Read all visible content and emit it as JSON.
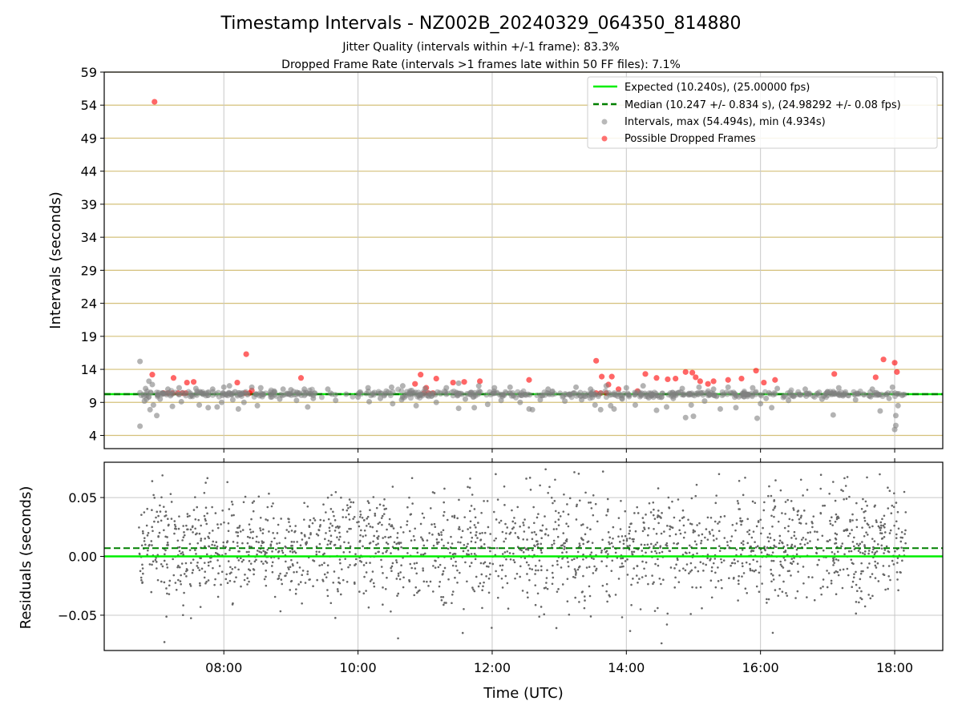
{
  "figure": {
    "title": "Timestamp Intervals - NZ002B_20240329_064350_814880",
    "subtitle_1": "Jitter Quality (intervals within +/-1 frame): 83.3%",
    "subtitle_2": "Dropped Frame Rate (intervals >1 frames late within 50 FF files): 7.1%",
    "xlabel": "Time (UTC)",
    "x_ticks": [
      "08:00",
      "10:00",
      "12:00",
      "14:00",
      "16:00",
      "18:00"
    ],
    "colors": {
      "expected": "#00ee00",
      "median": "#008000",
      "intervals": "#808080",
      "dropped": "#ff0000",
      "hgrid": "#d4c07a",
      "vgrid": "#c8c8c8"
    }
  },
  "chart_data": [
    {
      "type": "scatter",
      "panel": "top",
      "ylabel": "Intervals (seconds)",
      "y_ticks": [
        "4",
        "9",
        "14",
        "19",
        "24",
        "29",
        "34",
        "39",
        "44",
        "49",
        "54",
        "59"
      ],
      "xlim": [
        "06:13",
        "18:43"
      ],
      "ylim": [
        2,
        59
      ],
      "grid": "on",
      "legend_position": "top-right",
      "legend": [
        "Expected (10.240s), (25.00000 fps)",
        "Median (10.247 +/- 0.834 s), (24.98292 +/- 0.08 fps)",
        "Intervals, max (54.494s), min (4.934s)",
        "Possible Dropped Frames"
      ],
      "expected_interval": 10.24,
      "median_interval": 10.247,
      "max_interval": 54.494,
      "min_interval": 4.934,
      "time_range": [
        "06:43",
        "18:10"
      ],
      "series": [
        {
          "name": "Intervals, max (54.494s), min (4.934s)",
          "points": [
            [
              "06:45",
              15.2
            ],
            [
              "06:45",
              5.4
            ],
            [
              "06:49",
              9.2
            ],
            [
              "06:50",
              11.1
            ],
            [
              "06:53",
              12.2
            ],
            [
              "06:54",
              7.9
            ],
            [
              "06:56",
              11.7
            ],
            [
              "06:57",
              8.6
            ],
            [
              "07:00",
              7.0
            ],
            [
              "07:03",
              9.5
            ],
            [
              "07:10",
              11.0
            ],
            [
              "07:14",
              8.4
            ],
            [
              "07:20",
              11.2
            ],
            [
              "07:22",
              9.1
            ],
            [
              "07:30",
              9.9
            ],
            [
              "07:35",
              11.1
            ],
            [
              "07:38",
              8.6
            ],
            [
              "07:46",
              8.2
            ],
            [
              "07:50",
              11.0
            ],
            [
              "07:54",
              8.3
            ],
            [
              "07:58",
              9.0
            ],
            [
              "08:00",
              11.3
            ],
            [
              "08:05",
              11.5
            ],
            [
              "08:08",
              9.4
            ],
            [
              "08:10",
              10.6
            ],
            [
              "08:13",
              8.0
            ],
            [
              "08:18",
              9.0
            ],
            [
              "08:25",
              11.3
            ],
            [
              "08:30",
              8.5
            ],
            [
              "08:33",
              11.2
            ],
            [
              "08:42",
              9.8
            ],
            [
              "08:45",
              10.7
            ],
            [
              "08:50",
              9.5
            ],
            [
              "08:53",
              11.0
            ],
            [
              "09:00",
              10.9
            ],
            [
              "09:05",
              9.3
            ],
            [
              "09:12",
              11.0
            ],
            [
              "09:15",
              8.3
            ],
            [
              "09:20",
              9.6
            ],
            [
              "09:33",
              11.0
            ],
            [
              "09:40",
              9.3
            ],
            [
              "10:00",
              9.8
            ],
            [
              "10:09",
              11.2
            ],
            [
              "10:10",
              9.1
            ],
            [
              "10:20",
              9.6
            ],
            [
              "10:30",
              11.3
            ],
            [
              "10:31",
              8.8
            ],
            [
              "10:39",
              9.4
            ],
            [
              "10:40",
              11.5
            ],
            [
              "10:48",
              10.8
            ],
            [
              "10:52",
              8.5
            ],
            [
              "11:00",
              11.1
            ],
            [
              "11:10",
              9.0
            ],
            [
              "11:19",
              11.2
            ],
            [
              "11:30",
              8.1
            ],
            [
              "11:30",
              11.9
            ],
            [
              "11:36",
              9.5
            ],
            [
              "11:44",
              8.2
            ],
            [
              "11:48",
              11.5
            ],
            [
              "11:56",
              8.7
            ],
            [
              "12:02",
              11.2
            ],
            [
              "12:08",
              9.3
            ],
            [
              "12:16",
              11.3
            ],
            [
              "12:25",
              9.0
            ],
            [
              "12:33",
              8.0
            ],
            [
              "12:36",
              7.9
            ],
            [
              "12:43",
              9.4
            ],
            [
              "12:50",
              11.0
            ],
            [
              "13:05",
              9.2
            ],
            [
              "13:15",
              11.3
            ],
            [
              "13:20",
              9.4
            ],
            [
              "13:28",
              11.0
            ],
            [
              "13:32",
              8.6
            ],
            [
              "13:37",
              7.9
            ],
            [
              "13:42",
              11.5
            ],
            [
              "13:46",
              8.5
            ],
            [
              "13:49",
              8.0
            ],
            [
              "13:56",
              9.6
            ],
            [
              "14:00",
              11.2
            ],
            [
              "14:08",
              8.6
            ],
            [
              "14:15",
              11.5
            ],
            [
              "14:20",
              9.7
            ],
            [
              "14:27",
              7.8
            ],
            [
              "14:36",
              8.3
            ],
            [
              "14:42",
              9.6
            ],
            [
              "14:50",
              11.1
            ],
            [
              "14:53",
              6.7
            ],
            [
              "14:58",
              8.6
            ],
            [
              "15:00",
              6.9
            ],
            [
              "15:05",
              11.3
            ],
            [
              "15:10",
              9.2
            ],
            [
              "15:18",
              11.0
            ],
            [
              "15:24",
              8.0
            ],
            [
              "15:31",
              11.3
            ],
            [
              "15:38",
              8.2
            ],
            [
              "15:45",
              9.9
            ],
            [
              "15:53",
              11.2
            ],
            [
              "15:57",
              6.6
            ],
            [
              "16:00",
              8.8
            ],
            [
              "16:05",
              9.6
            ],
            [
              "16:10",
              8.2
            ],
            [
              "16:15",
              11.1
            ],
            [
              "16:25",
              9.3
            ],
            [
              "16:40",
              11.0
            ],
            [
              "16:55",
              9.5
            ],
            [
              "17:05",
              7.1
            ],
            [
              "17:10",
              11.2
            ],
            [
              "17:25",
              9.4
            ],
            [
              "17:40",
              11.0
            ],
            [
              "17:47",
              7.7
            ],
            [
              "17:55",
              9.6
            ],
            [
              "17:58",
              11.3
            ],
            [
              "18:00",
              4.9
            ],
            [
              "18:01",
              5.5
            ],
            [
              "18:01",
              7.0
            ],
            [
              "18:03",
              8.5
            ]
          ]
        },
        {
          "name": "Possible Dropped Frames",
          "points": [
            [
              "06:58",
              54.5
            ],
            [
              "06:56",
              13.2
            ],
            [
              "07:15",
              12.7
            ],
            [
              "07:27",
              12.0
            ],
            [
              "07:33",
              12.1
            ],
            [
              "08:12",
              12.0
            ],
            [
              "08:20",
              16.3
            ],
            [
              "09:09",
              12.7
            ],
            [
              "10:51",
              11.8
            ],
            [
              "10:56",
              13.2
            ],
            [
              "11:10",
              12.6
            ],
            [
              "11:25",
              12.0
            ],
            [
              "11:35",
              12.1
            ],
            [
              "11:49",
              12.2
            ],
            [
              "12:33",
              12.4
            ],
            [
              "13:33",
              15.3
            ],
            [
              "13:38",
              12.9
            ],
            [
              "13:44",
              11.7
            ],
            [
              "13:47",
              12.9
            ],
            [
              "13:53",
              11.0
            ],
            [
              "14:17",
              13.3
            ],
            [
              "14:27",
              12.7
            ],
            [
              "14:37",
              12.5
            ],
            [
              "14:44",
              12.6
            ],
            [
              "14:53",
              13.6
            ],
            [
              "14:59",
              13.5
            ],
            [
              "15:02",
              12.8
            ],
            [
              "15:06",
              12.2
            ],
            [
              "15:13",
              11.8
            ],
            [
              "15:18",
              12.2
            ],
            [
              "15:31",
              12.4
            ],
            [
              "15:43",
              12.6
            ],
            [
              "15:56",
              13.8
            ],
            [
              "16:03",
              12.0
            ],
            [
              "16:13",
              12.4
            ],
            [
              "17:06",
              13.3
            ],
            [
              "17:43",
              12.8
            ],
            [
              "17:50",
              15.5
            ],
            [
              "18:00",
              15.0
            ],
            [
              "18:02",
              13.6
            ],
            [
              "07:06",
              10.4
            ],
            [
              "07:10",
              10.4
            ],
            [
              "07:14",
              10.4
            ],
            [
              "07:19",
              10.4
            ],
            [
              "07:23",
              10.4
            ],
            [
              "07:26",
              10.4
            ],
            [
              "08:19",
              10.4
            ],
            [
              "08:23",
              10.4
            ],
            [
              "08:25",
              10.8
            ],
            [
              "10:59",
              10.4
            ],
            [
              "11:03",
              10.4
            ],
            [
              "11:07",
              10.4
            ],
            [
              "11:01",
              11.2
            ],
            [
              "13:33",
              10.4
            ],
            [
              "13:37",
              10.4
            ],
            [
              "13:42",
              10.4
            ],
            [
              "14:10",
              10.7
            ]
          ]
        }
      ]
    },
    {
      "type": "scatter",
      "panel": "bottom",
      "ylabel": "Residuals (seconds)",
      "y_ticks": [
        "0.05",
        "0.00",
        "−0.05"
      ],
      "xlim": [
        "06:13",
        "18:43"
      ],
      "ylim": [
        -0.08,
        0.08
      ],
      "grid": "on",
      "expected_residual": 0.0,
      "median_residual": 0.007,
      "residual_range": [
        -0.078,
        0.076
      ],
      "residual_spread": 0.024,
      "time_range": [
        "06:44",
        "18:10"
      ],
      "series": [
        {
          "name": "Residuals",
          "point_count": 2000
        }
      ]
    }
  ]
}
